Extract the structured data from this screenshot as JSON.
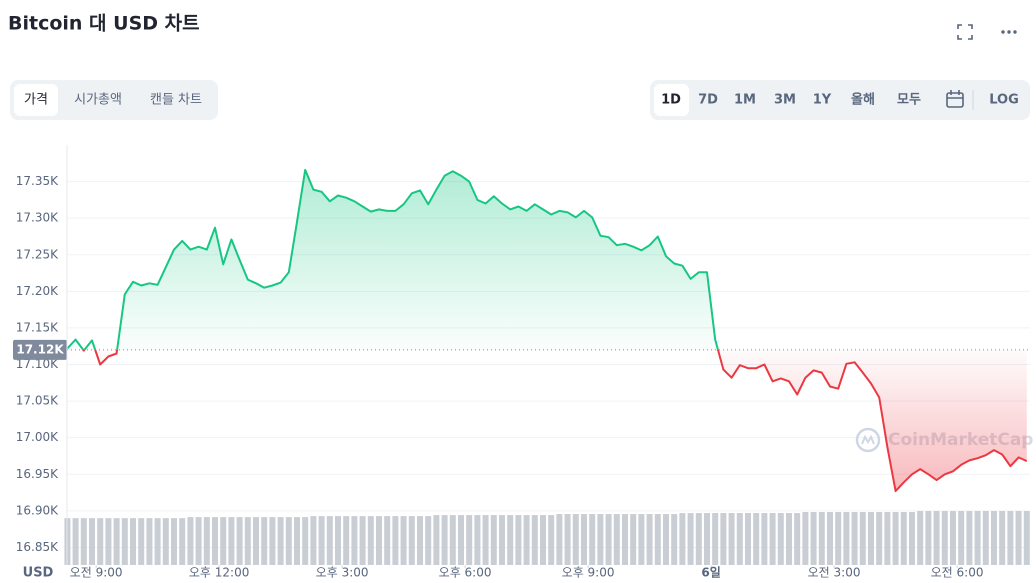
{
  "tabs": [
    "가격",
    "시가총액",
    "캔들 차트"
  ],
  "ranges": [
    "1D",
    "7D",
    "1M",
    "3M",
    "1Y",
    "올해",
    "모두"
  ],
  "log_button": "LOG",
  "chart_data": {
    "type": "line",
    "title": "Bitcoin 대 USD 차트",
    "ylabel": "USD",
    "watermark": "CoinMarketCap",
    "up_color": "#16c784",
    "down_color": "#ea3943",
    "volume_color": "#c9cdd4",
    "grid": true,
    "xlim": [
      8.29,
      31.73
    ],
    "ylim": [
      16826,
      17400
    ],
    "xticks": [
      {
        "value": 9,
        "label": "오전 9:00"
      },
      {
        "value": 12,
        "label": "오후 12:00"
      },
      {
        "value": 15,
        "label": "오후 3:00"
      },
      {
        "value": 18,
        "label": "오후 6:00"
      },
      {
        "value": 21,
        "label": "오후 9:00"
      },
      {
        "value": 24,
        "label": "6일"
      },
      {
        "value": 27,
        "label": "오전 3:00"
      },
      {
        "value": 30,
        "label": "오전 6:00"
      }
    ],
    "yticks": [
      {
        "value": 16850,
        "label": "16.85K"
      },
      {
        "value": 16900,
        "label": "16.90K"
      },
      {
        "value": 16950,
        "label": "16.95K"
      },
      {
        "value": 17000,
        "label": "17.00K"
      },
      {
        "value": 17050,
        "label": "17.05K"
      },
      {
        "value": 17100,
        "label": "17.10K"
      },
      {
        "value": 17150,
        "label": "17.15K"
      },
      {
        "value": 17200,
        "label": "17.20K"
      },
      {
        "value": 17250,
        "label": "17.25K"
      },
      {
        "value": 17300,
        "label": "17.30K"
      },
      {
        "value": 17350,
        "label": "17.35K"
      }
    ],
    "reference": {
      "value": 17120,
      "label": "17.12K"
    },
    "x": [
      8.3,
      8.5,
      8.7,
      8.9,
      9.1,
      9.3,
      9.5,
      9.7,
      9.9,
      10.1,
      10.3,
      10.5,
      10.7,
      10.9,
      11.1,
      11.3,
      11.5,
      11.7,
      11.9,
      12.1,
      12.3,
      12.5,
      12.7,
      12.9,
      13.1,
      13.3,
      13.5,
      13.7,
      13.9,
      14.1,
      14.3,
      14.5,
      14.7,
      14.9,
      15.1,
      15.3,
      15.5,
      15.7,
      15.9,
      16.1,
      16.3,
      16.5,
      16.7,
      16.9,
      17.1,
      17.3,
      17.5,
      17.7,
      17.9,
      18.1,
      18.3,
      18.5,
      18.7,
      18.9,
      19.1,
      19.3,
      19.5,
      19.7,
      19.9,
      20.1,
      20.3,
      20.5,
      20.7,
      20.9,
      21.1,
      21.3,
      21.5,
      21.7,
      21.9,
      22.1,
      22.3,
      22.5,
      22.7,
      22.9,
      23.1,
      23.3,
      23.5,
      23.7,
      23.9,
      24.1,
      24.3,
      24.5,
      24.7,
      24.9,
      25.1,
      25.3,
      25.5,
      25.7,
      25.9,
      26.1,
      26.3,
      26.5,
      26.7,
      26.9,
      27.1,
      27.3,
      27.5,
      27.7,
      27.9,
      28.1,
      28.3,
      28.5,
      28.7,
      28.9,
      29.1,
      29.3,
      29.5,
      29.7,
      29.9,
      30.1,
      30.3,
      30.5,
      30.7,
      30.9,
      31.1,
      31.3,
      31.5,
      31.7
    ],
    "values": [
      17122,
      17134,
      17119,
      17133,
      17100,
      17111,
      17115,
      17196,
      17213,
      17208,
      17211,
      17209,
      17233,
      17257,
      17269,
      17257,
      17261,
      17257,
      17287,
      17237,
      17271,
      17243,
      17216,
      17211,
      17205,
      17208,
      17212,
      17226,
      17295,
      17366,
      17339,
      17336,
      17323,
      17331,
      17328,
      17323,
      17316,
      17309,
      17312,
      17310,
      17310,
      17319,
      17334,
      17338,
      17319,
      17339,
      17358,
      17364,
      17358,
      17350,
      17325,
      17320,
      17330,
      17320,
      17312,
      17316,
      17310,
      17319,
      17312,
      17305,
      17310,
      17308,
      17301,
      17310,
      17301,
      17276,
      17274,
      17263,
      17265,
      17261,
      17256,
      17263,
      17275,
      17248,
      17238,
      17235,
      17217,
      17226,
      17226,
      17134,
      17093,
      17082,
      17099,
      17095,
      17095,
      17100,
      17077,
      17081,
      17077,
      17059,
      17082,
      17092,
      17089,
      17070,
      17067,
      17101,
      17103,
      17089,
      17074,
      17055,
      16987,
      16927,
      16939,
      16950,
      16957,
      16950,
      16942,
      16950,
      16954,
      16963,
      16969,
      16972,
      16976,
      16983,
      16977,
      16961,
      16973,
      16968
    ],
    "volume": [
      46,
      46,
      46,
      46,
      46,
      46,
      46,
      46,
      46,
      46,
      46,
      46,
      46,
      46,
      46,
      47,
      47,
      47,
      47,
      47,
      47,
      47,
      47,
      47,
      47,
      47,
      47,
      47,
      47,
      47,
      48,
      48,
      48,
      48,
      48,
      48,
      48,
      48,
      48,
      48,
      48,
      48,
      48,
      48,
      48,
      49,
      49,
      49,
      49,
      49,
      49,
      49,
      49,
      49,
      49,
      49,
      49,
      49,
      49,
      49,
      50,
      50,
      50,
      50,
      50,
      50,
      50,
      50,
      50,
      50,
      50,
      50,
      50,
      50,
      50,
      51,
      51,
      51,
      51,
      51,
      51,
      51,
      51,
      51,
      51,
      51,
      51,
      51,
      51,
      51,
      52,
      52,
      52,
      52,
      52,
      52,
      52,
      52,
      52,
      52,
      52,
      52,
      52,
      52,
      53,
      53,
      53,
      53,
      53,
      53,
      53,
      53,
      53,
      53,
      53,
      53,
      53,
      53
    ]
  }
}
